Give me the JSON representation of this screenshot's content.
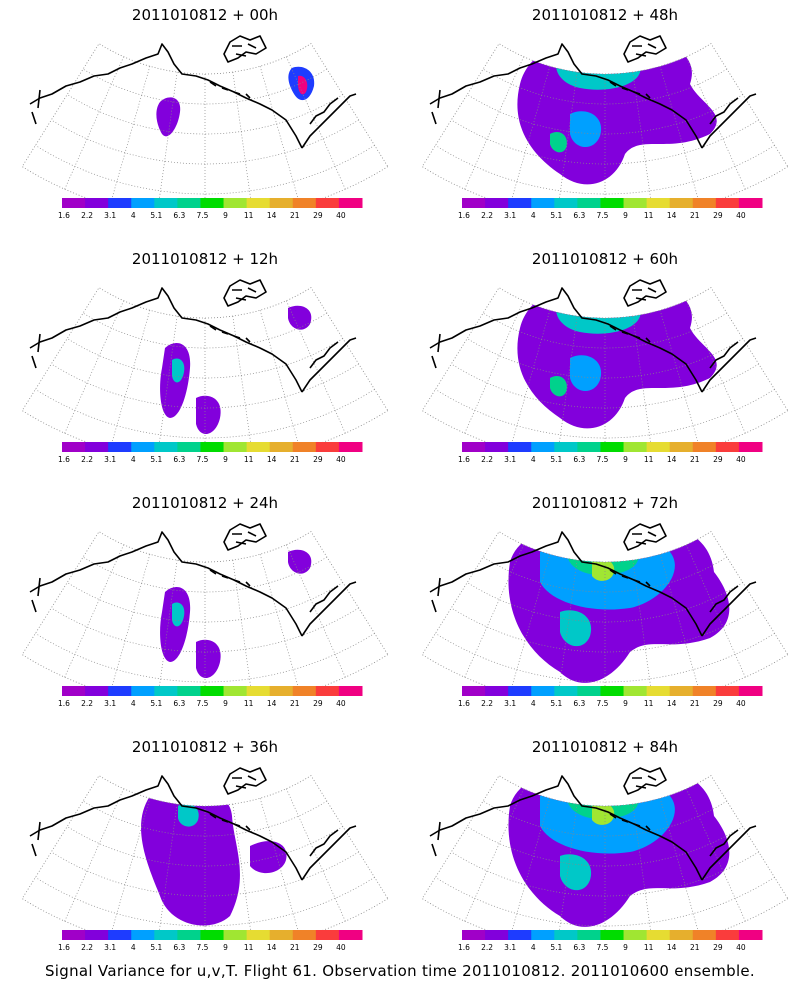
{
  "panels": [
    {
      "title": "2011010812 + 00h",
      "lead_hours": 0,
      "coverage": "minimal"
    },
    {
      "title": "2011010812 + 48h",
      "lead_hours": 48,
      "coverage": "large"
    },
    {
      "title": "2011010812 + 12h",
      "lead_hours": 12,
      "coverage": "small"
    },
    {
      "title": "2011010812 + 60h",
      "lead_hours": 60,
      "coverage": "large"
    },
    {
      "title": "2011010812 + 24h",
      "lead_hours": 24,
      "coverage": "small"
    },
    {
      "title": "2011010812 + 72h",
      "lead_hours": 72,
      "coverage": "very-large"
    },
    {
      "title": "2011010812 + 36h",
      "lead_hours": 36,
      "coverage": "medium"
    },
    {
      "title": "2011010812 + 84h",
      "lead_hours": 84,
      "coverage": "very-large"
    }
  ],
  "colorbar": {
    "labels": [
      "1.6",
      "2.2",
      "3.1",
      "4",
      "5.1",
      "6.3",
      "7.5",
      "9",
      "11",
      "14",
      "21",
      "29",
      "40"
    ],
    "colors": [
      "#a000c8",
      "#8200dc",
      "#1e3cff",
      "#00a0ff",
      "#00c8c8",
      "#00d28c",
      "#00dc00",
      "#a0e632",
      "#e6dc32",
      "#e6af2d",
      "#f08228",
      "#fa3c3c",
      "#f00082"
    ]
  },
  "footer": "Signal Variance for u,v,T. Flight 61. Observation time 2011010812. 2011010600 ensemble."
}
